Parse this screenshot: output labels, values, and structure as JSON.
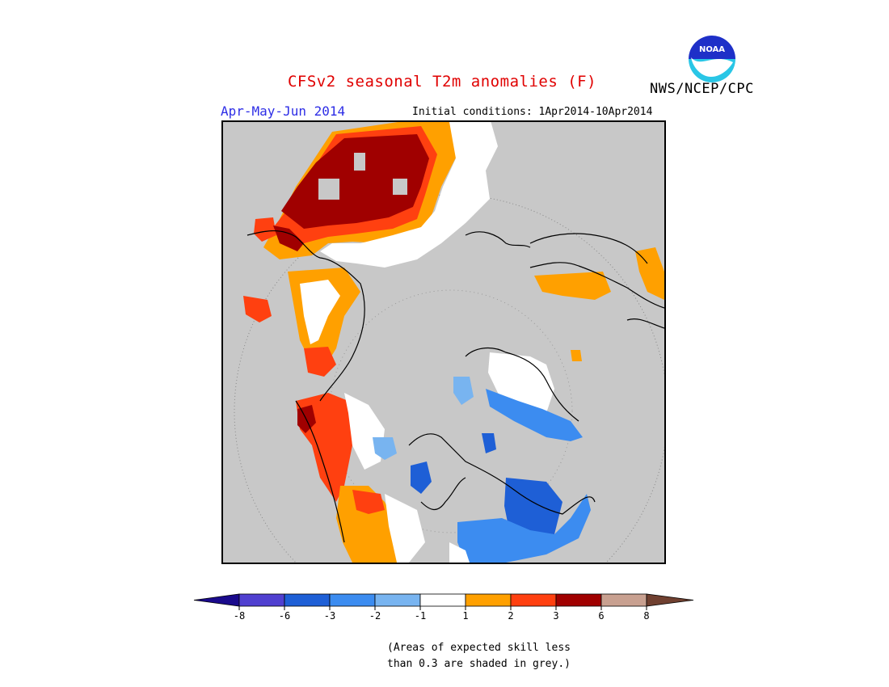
{
  "header": {
    "title": "CFSv2 seasonal T2m anomalies (F)",
    "agency": "NWS/NCEP/CPC",
    "logo_text": "NOAA",
    "season": "Apr-May-Jun 2014",
    "initial_conditions": "Initial conditions: 1Apr2014-10Apr2014"
  },
  "legend": {
    "tick_labels": [
      "-8",
      "-6",
      "-3",
      "-2",
      "-1",
      "1",
      "2",
      "3",
      "6",
      "8"
    ],
    "colors": [
      "#1a0a8c",
      "#5040d0",
      "#1e5fd6",
      "#3c8cf0",
      "#78b4f0",
      "#ffffff",
      "#ffa000",
      "#ff4010",
      "#a00000",
      "#c8a090",
      "#704030"
    ]
  },
  "note": {
    "line1": "(Areas of expected skill less",
    "line2": "than 0.3 are shaded in grey.)"
  },
  "colors": {
    "title": "#e00000",
    "season": "#2d2de6",
    "map_background": "#c8c8c8"
  }
}
